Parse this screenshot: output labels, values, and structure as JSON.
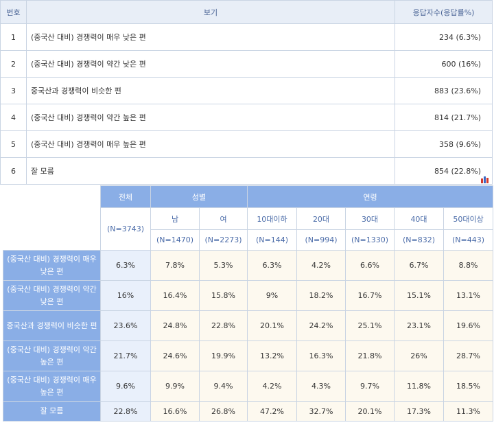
{
  "answers": {
    "headers": {
      "no": "번호",
      "label": "보기",
      "responses": "응답자수(응답률%)"
    },
    "rows": [
      {
        "no": "1",
        "label": "(중국산 대비) 경쟁력이 매우 낮은 편",
        "responses": "234 (6.3%)"
      },
      {
        "no": "2",
        "label": "(중국산 대비) 경쟁력이 약간 낮은 편",
        "responses": "600 (16%)"
      },
      {
        "no": "3",
        "label": "중국산과 경쟁력이 비슷한 편",
        "responses": "883 (23.6%)"
      },
      {
        "no": "4",
        "label": "(중국산 대비) 경쟁력이 약간 높은 편",
        "responses": "814 (21.7%)"
      },
      {
        "no": "5",
        "label": "(중국산 대비) 경쟁력이 매우 높은 편",
        "responses": "358 (9.6%)"
      },
      {
        "no": "6",
        "label": "잘 모름",
        "responses": "854 (22.8%)"
      }
    ]
  },
  "chart_toggle": {
    "icon": "bar-chart-icon",
    "colors": [
      "#d33a2c",
      "#3a66c4",
      "#d33a2c"
    ]
  },
  "cross": {
    "total": {
      "label": "전체",
      "n": "(N=3743)"
    },
    "gender": {
      "label": "성별",
      "cols": [
        {
          "label": "남",
          "n": "(N=1470)"
        },
        {
          "label": "여",
          "n": "(N=2273)"
        }
      ]
    },
    "age": {
      "label": "연령",
      "cols": [
        {
          "label": "10대이하",
          "n": "(N=144)"
        },
        {
          "label": "20대",
          "n": "(N=994)"
        },
        {
          "label": "30대",
          "n": "(N=1330)"
        },
        {
          "label": "40대",
          "n": "(N=832)"
        },
        {
          "label": "50대이상",
          "n": "(N=443)"
        }
      ]
    },
    "rows": [
      {
        "label": "(중국산 대비) 경쟁력이 매우 낮은 편",
        "total": "6.3%",
        "values": [
          "7.8%",
          "5.3%",
          "6.3%",
          "4.2%",
          "6.6%",
          "6.7%",
          "8.8%"
        ]
      },
      {
        "label": "(중국산 대비) 경쟁력이 약간 낮은 편",
        "total": "16%",
        "values": [
          "16.4%",
          "15.8%",
          "9%",
          "18.2%",
          "16.7%",
          "15.1%",
          "13.1%"
        ]
      },
      {
        "label": "중국산과 경쟁력이 비슷한 편",
        "total": "23.6%",
        "values": [
          "24.8%",
          "22.8%",
          "20.1%",
          "24.2%",
          "25.1%",
          "23.1%",
          "19.6%"
        ]
      },
      {
        "label": "(중국산 대비) 경쟁력이 약간 높은 편",
        "total": "21.7%",
        "values": [
          "24.6%",
          "19.9%",
          "13.2%",
          "16.3%",
          "21.8%",
          "26%",
          "28.7%"
        ]
      },
      {
        "label": "(중국산 대비) 경쟁력이 매우 높은 편",
        "total": "9.6%",
        "values": [
          "9.9%",
          "9.4%",
          "4.2%",
          "4.3%",
          "9.7%",
          "11.8%",
          "18.5%"
        ]
      },
      {
        "label": "잘 모름",
        "total": "22.8%",
        "values": [
          "16.6%",
          "26.8%",
          "47.2%",
          "32.7%",
          "20.1%",
          "17.3%",
          "11.3%"
        ]
      }
    ]
  }
}
